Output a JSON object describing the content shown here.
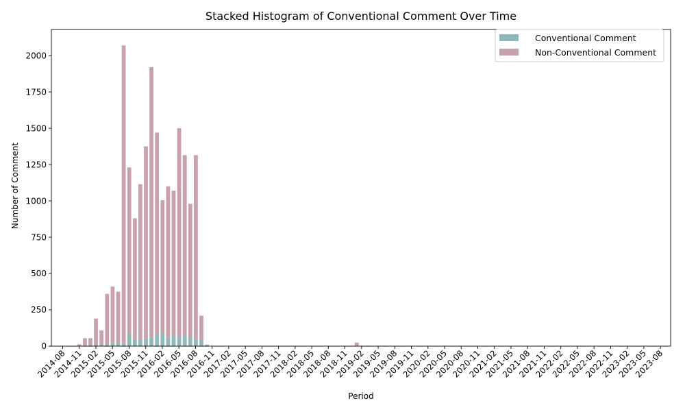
{
  "chart_data": {
    "type": "bar",
    "stacked": true,
    "title": "Stacked Histogram of Conventional Comment Over Time",
    "xlabel": "Period",
    "ylabel": "Number of Comment",
    "ylim": [
      0,
      2180
    ],
    "yticks": [
      0,
      250,
      500,
      750,
      1000,
      1250,
      1500,
      1750,
      2000
    ],
    "xtick_labels": [
      "2014-08",
      "2014-11",
      "2015-02",
      "2015-05",
      "2015-08",
      "2015-11",
      "2016-02",
      "2016-05",
      "2016-08",
      "2016-11",
      "2017-02",
      "2017-05",
      "2017-08",
      "2017-11",
      "2018-02",
      "2018-05",
      "2018-08",
      "2018-11",
      "2019-02",
      "2019-05",
      "2019-08",
      "2019-11",
      "2020-02",
      "2020-05",
      "2020-08",
      "2020-11",
      "2021-02",
      "2021-05",
      "2021-08",
      "2021-11",
      "2022-02",
      "2022-05",
      "2022-08",
      "2022-11",
      "2023-02",
      "2023-05",
      "2023-08"
    ],
    "legend": {
      "position": "top-right"
    },
    "colors": {
      "conventional": "#8fb8b8",
      "non_conventional": "#c9a0ad"
    },
    "series": [
      {
        "name": "Conventional Comment",
        "values": [
          0,
          0,
          0,
          2,
          3,
          5,
          5,
          8,
          10,
          20,
          25,
          20,
          80,
          50,
          40,
          55,
          60,
          80,
          90,
          60,
          70,
          65,
          75,
          60,
          45,
          50,
          10,
          0,
          0,
          0,
          0,
          0,
          0,
          0,
          0,
          0,
          0,
          0,
          0,
          0,
          0,
          0,
          0,
          0,
          0,
          0,
          0,
          0,
          0,
          0,
          0,
          0,
          0,
          0,
          0,
          0,
          0,
          0,
          0,
          0,
          0,
          0,
          0,
          0,
          0,
          0,
          0,
          0,
          0,
          0,
          0,
          0,
          0,
          0,
          0,
          0,
          0,
          0,
          0,
          0,
          0,
          0,
          0,
          0,
          0,
          0,
          0,
          0,
          0,
          0,
          0,
          0,
          0,
          0,
          0,
          0,
          0,
          0,
          0,
          0,
          0,
          0,
          0,
          0,
          0,
          0,
          0,
          0,
          0,
          0,
          0
        ]
      },
      {
        "name": "Non-Conventional Comment",
        "values": [
          0,
          0,
          0,
          10,
          52,
          50,
          185,
          100,
          350,
          390,
          350,
          2050,
          1150,
          830,
          1075,
          1320,
          1860,
          1390,
          915,
          1040,
          1000,
          1435,
          1240,
          920,
          1270,
          160,
          0,
          0,
          0,
          0,
          0,
          0,
          0,
          0,
          0,
          0,
          0,
          0,
          0,
          0,
          0,
          0,
          0,
          0,
          0,
          0,
          0,
          0,
          2,
          0,
          0,
          0,
          0,
          25,
          2,
          3,
          0,
          2,
          3,
          0,
          0,
          0,
          2,
          0,
          0,
          0,
          0,
          0,
          0,
          0,
          0,
          0,
          0,
          0,
          0,
          0,
          0,
          0,
          0,
          0,
          0,
          0,
          2,
          0,
          0,
          2,
          3,
          2,
          0,
          0,
          0,
          0,
          0,
          0,
          0,
          0,
          0,
          0,
          0,
          0,
          2,
          0,
          0,
          0,
          0,
          2,
          0,
          0,
          0,
          0,
          0
        ]
      }
    ]
  }
}
